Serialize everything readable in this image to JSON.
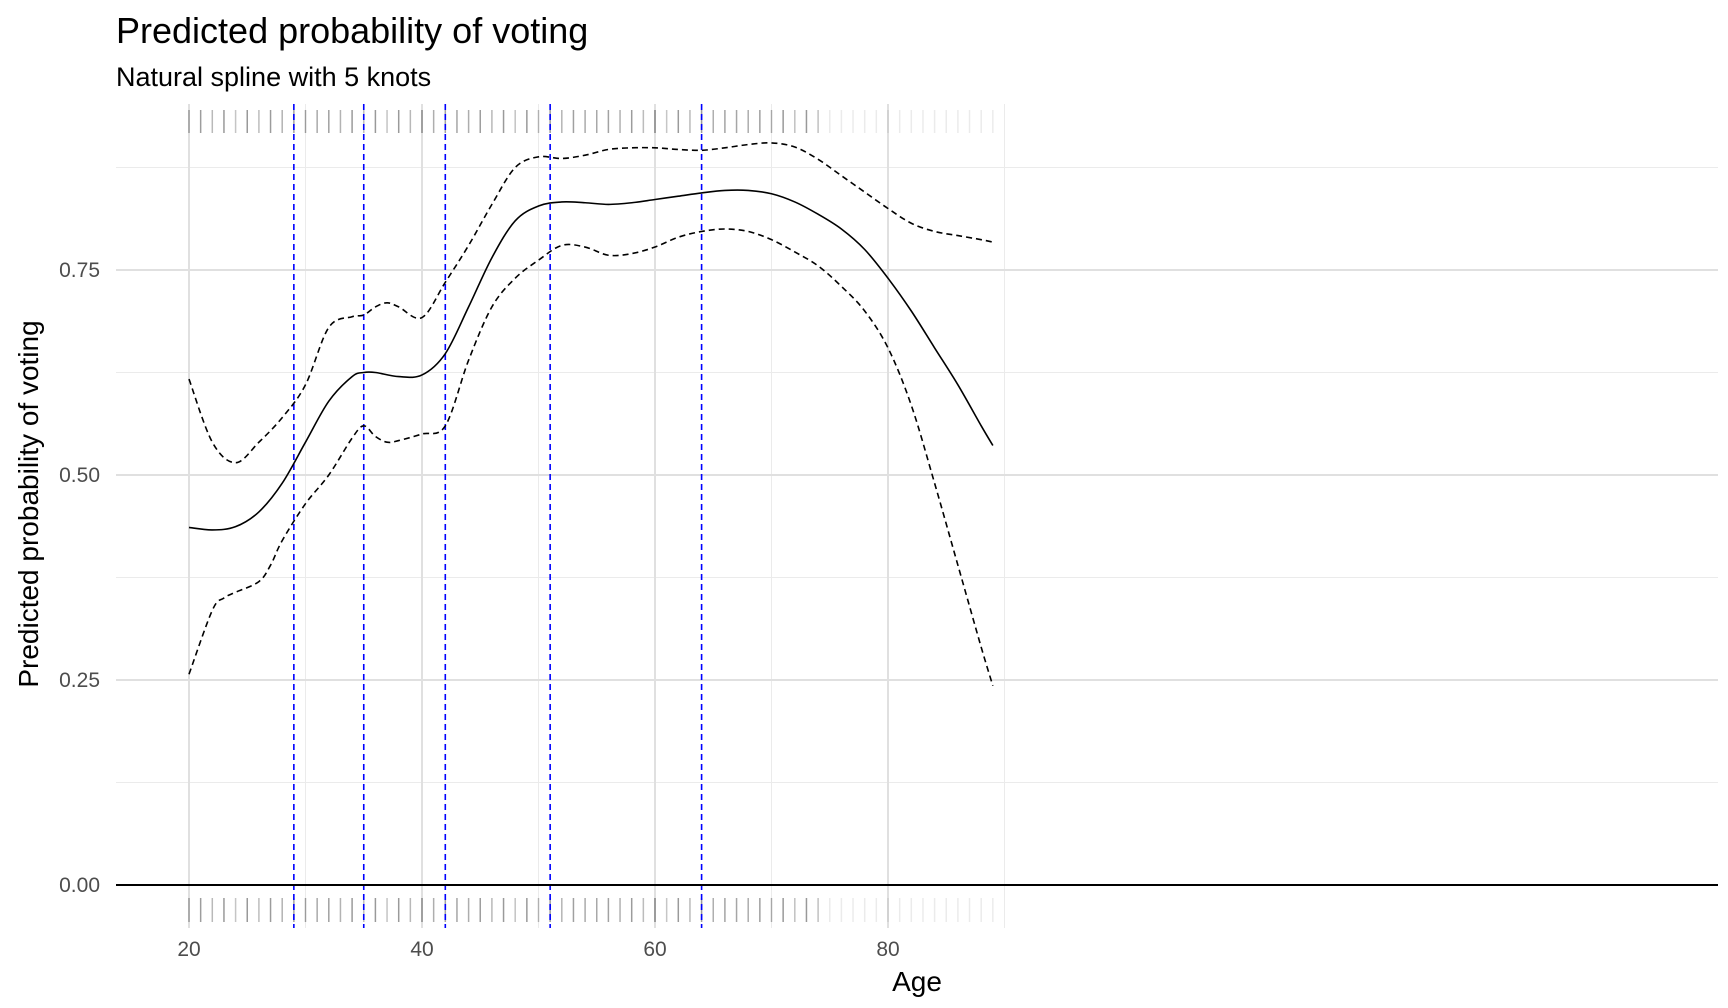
{
  "chart_data": {
    "type": "line",
    "title": "Predicted probability of voting",
    "subtitle": "Natural spline with 5 knots",
    "xlabel": "Age",
    "ylabel": "Predicted probability of voting",
    "xlim": [
      18.3,
      91.5
    ],
    "ylim": [
      0,
      0.94
    ],
    "x_ticks": [
      20,
      40,
      60,
      80
    ],
    "y_ticks": [
      0,
      0.25,
      0.5,
      0.75
    ],
    "y_tick_labels": [
      "0.00",
      "0.25",
      "0.50",
      "0.75"
    ],
    "grid": true,
    "knots": [
      29,
      35,
      42,
      51,
      64
    ],
    "knot_color": "#0000ff",
    "series": [
      {
        "role": "fit",
        "style": "solid",
        "x": [
          20,
          22,
          24,
          26,
          28,
          30,
          32,
          34,
          35,
          36,
          38,
          40,
          42,
          44,
          46,
          48,
          50,
          52,
          54,
          56,
          58,
          60,
          62,
          64,
          66,
          68,
          70,
          72,
          74,
          76,
          78,
          80,
          82,
          84,
          86,
          88,
          89
        ],
        "y": [
          0.436,
          0.433,
          0.437,
          0.455,
          0.49,
          0.54,
          0.59,
          0.62,
          0.625,
          0.625,
          0.62,
          0.622,
          0.648,
          0.705,
          0.765,
          0.81,
          0.828,
          0.833,
          0.832,
          0.83,
          0.832,
          0.836,
          0.84,
          0.844,
          0.847,
          0.847,
          0.843,
          0.833,
          0.818,
          0.8,
          0.775,
          0.74,
          0.7,
          0.655,
          0.61,
          0.56,
          0.536
        ]
      },
      {
        "role": "upper-bound",
        "style": "dashed",
        "x": [
          20,
          22,
          24,
          26,
          28,
          30,
          32,
          34,
          35,
          36,
          37,
          38,
          40,
          42,
          44,
          46,
          48,
          50,
          52,
          54,
          56,
          58,
          60,
          62,
          64,
          66,
          68,
          70,
          72,
          74,
          76,
          78,
          80,
          82,
          84,
          86,
          88,
          89
        ],
        "y": [
          0.617,
          0.54,
          0.515,
          0.54,
          0.57,
          0.61,
          0.68,
          0.693,
          0.695,
          0.705,
          0.71,
          0.705,
          0.692,
          0.735,
          0.78,
          0.83,
          0.875,
          0.888,
          0.886,
          0.89,
          0.897,
          0.899,
          0.899,
          0.897,
          0.896,
          0.899,
          0.903,
          0.905,
          0.9,
          0.885,
          0.865,
          0.845,
          0.825,
          0.807,
          0.797,
          0.792,
          0.787,
          0.784
        ]
      },
      {
        "role": "lower-bound",
        "style": "dashed",
        "x": [
          20,
          22,
          23,
          24,
          26,
          27,
          28,
          30,
          32,
          34,
          35,
          36,
          37,
          38,
          40,
          42,
          44,
          46,
          48,
          50,
          52,
          54,
          56,
          58,
          60,
          62,
          64,
          66,
          68,
          70,
          72,
          74,
          76,
          78,
          80,
          82,
          84,
          86,
          88,
          89
        ],
        "y": [
          0.257,
          0.335,
          0.35,
          0.357,
          0.37,
          0.39,
          0.42,
          0.465,
          0.5,
          0.545,
          0.56,
          0.547,
          0.54,
          0.542,
          0.55,
          0.56,
          0.64,
          0.705,
          0.74,
          0.762,
          0.78,
          0.778,
          0.768,
          0.77,
          0.778,
          0.79,
          0.797,
          0.8,
          0.797,
          0.787,
          0.772,
          0.755,
          0.73,
          0.7,
          0.655,
          0.585,
          0.49,
          0.39,
          0.29,
          0.243
        ]
      }
    ]
  }
}
